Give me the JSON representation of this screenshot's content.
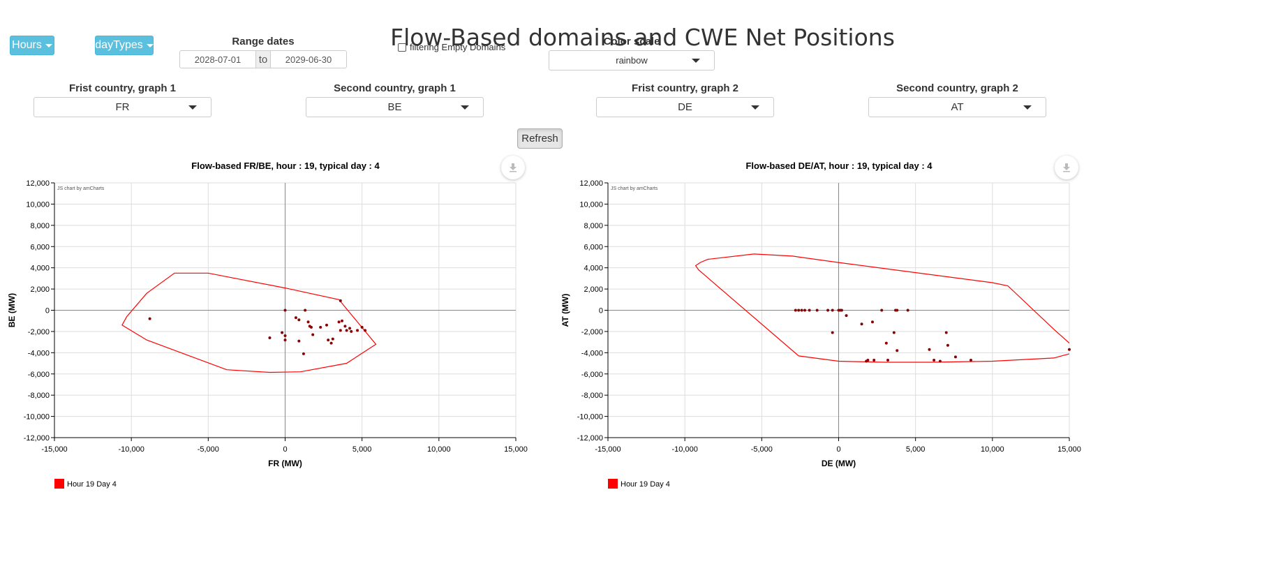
{
  "page": {
    "title": "Flow-Based domains and CWE Net Positions"
  },
  "controls": {
    "hours_label": "Hours",
    "daytypes_label": "dayTypes",
    "range_label": "Range dates",
    "date_from": "2028-07-01",
    "date_sep": "to",
    "date_to": "2029-06-30",
    "filter_label": "filtering Empty Domains",
    "color_scale_label": "Color scale",
    "color_scale_value": "rainbow",
    "selects": [
      {
        "label": "Frist country, graph 1",
        "value": "FR"
      },
      {
        "label": "Second country, graph 1",
        "value": "BE"
      },
      {
        "label": "Frist country, graph 2",
        "value": "DE"
      },
      {
        "label": "Second country, graph 2",
        "value": "AT"
      }
    ],
    "refresh_label": "Refresh"
  },
  "colors": {
    "accent": "#5bc0de",
    "series": "#ff0000",
    "points": "#8b0000"
  },
  "chart_data": [
    {
      "type": "scatter",
      "title": "Flow-based FR/BE, hour : 19, typical day : 4",
      "xlabel": "FR (MW)",
      "ylabel": "BE (MW)",
      "xlim": [
        -15000,
        15000
      ],
      "ylim": [
        -12000,
        12000
      ],
      "x_ticks": [
        "-15,000",
        "-10,000",
        "-5,000",
        "0",
        "5,000",
        "10,000",
        "15,000"
      ],
      "y_ticks": [
        "12,000",
        "10,000",
        "8,000",
        "6,000",
        "4,000",
        "2,000",
        "0",
        "-2,000",
        "-4,000",
        "-6,000",
        "-8,000",
        "-10,000",
        "-12,000"
      ],
      "credit": "JS chart by amCharts",
      "legend": "Hour 19 Day 4",
      "grid": true,
      "domain": [
        [
          -7200,
          3500
        ],
        [
          -5000,
          3500
        ],
        [
          0,
          2100
        ],
        [
          3500,
          1000
        ],
        [
          5900,
          -3200
        ],
        [
          4000,
          -5000
        ],
        [
          1000,
          -5800
        ],
        [
          -1000,
          -5850
        ],
        [
          -3800,
          -5600
        ],
        [
          -9000,
          -2800
        ],
        [
          -10600,
          -1400
        ],
        [
          -10300,
          -600
        ],
        [
          -9000,
          1600
        ],
        [
          -7200,
          3500
        ]
      ],
      "points": [
        [
          -8800,
          -800
        ],
        [
          0,
          0
        ],
        [
          1300,
          0
        ],
        [
          700,
          -700
        ],
        [
          900,
          -900
        ],
        [
          1500,
          -1100
        ],
        [
          1600,
          -1500
        ],
        [
          1700,
          -1600
        ],
        [
          1800,
          -2300
        ],
        [
          2300,
          -1600
        ],
        [
          2700,
          -1400
        ],
        [
          3500,
          -1100
        ],
        [
          3600,
          -1900
        ],
        [
          3700,
          -1000
        ],
        [
          3900,
          -1500
        ],
        [
          4000,
          -1900
        ],
        [
          4200,
          -1700
        ],
        [
          4300,
          -2000
        ],
        [
          4700,
          -1900
        ],
        [
          5000,
          -1600
        ],
        [
          5200,
          -1900
        ],
        [
          3600,
          900
        ],
        [
          2800,
          -2800
        ],
        [
          3000,
          -3100
        ],
        [
          3100,
          -2700
        ],
        [
          -1000,
          -2600
        ],
        [
          -200,
          -2100
        ],
        [
          0,
          -2400
        ],
        [
          0,
          -2800
        ],
        [
          900,
          -2900
        ],
        [
          1200,
          -4100
        ]
      ]
    },
    {
      "type": "scatter",
      "title": "Flow-based DE/AT, hour : 19, typical day : 4",
      "xlabel": "DE (MW)",
      "ylabel": "AT (MW)",
      "xlim": [
        -15000,
        15000
      ],
      "ylim": [
        -12000,
        12000
      ],
      "x_ticks": [
        "-15,000",
        "-10,000",
        "-5,000",
        "0",
        "5,000",
        "10,000",
        "15,000"
      ],
      "y_ticks": [
        "12,000",
        "10,000",
        "8,000",
        "6,000",
        "4,000",
        "2,000",
        "0",
        "-2,000",
        "-4,000",
        "-6,000",
        "-8,000",
        "-10,000",
        "-12,000"
      ],
      "credit": "JS chart by amCharts",
      "legend": "Hour 19 Day 4",
      "grid": true,
      "domain": [
        [
          15000,
          -3100
        ],
        [
          14000,
          -1800
        ],
        [
          11000,
          2300
        ],
        [
          10000,
          2600
        ],
        [
          0,
          4500
        ],
        [
          -3000,
          5100
        ],
        [
          -5500,
          5300
        ],
        [
          -8500,
          4800
        ],
        [
          -9000,
          4500
        ],
        [
          -9300,
          4200
        ],
        [
          -9100,
          3800
        ],
        [
          -8300,
          2800
        ],
        [
          -2600,
          -4300
        ],
        [
          0,
          -4800
        ],
        [
          3000,
          -4900
        ],
        [
          6000,
          -4900
        ],
        [
          10000,
          -4800
        ],
        [
          14000,
          -4500
        ],
        [
          15000,
          -4100
        ]
      ],
      "points": [
        [
          -2800,
          0
        ],
        [
          -2600,
          0
        ],
        [
          -2400,
          0
        ],
        [
          -2200,
          0
        ],
        [
          -1900,
          0
        ],
        [
          -1400,
          0
        ],
        [
          -700,
          0
        ],
        [
          -400,
          0
        ],
        [
          0,
          0
        ],
        [
          100,
          0
        ],
        [
          200,
          0
        ],
        [
          500,
          -500
        ],
        [
          -400,
          -2100
        ],
        [
          1500,
          -1300
        ],
        [
          2200,
          -1100
        ],
        [
          2800,
          0
        ],
        [
          3700,
          0
        ],
        [
          3800,
          0
        ],
        [
          4500,
          0
        ],
        [
          3100,
          -3100
        ],
        [
          3600,
          -2100
        ],
        [
          3800,
          -3800
        ],
        [
          3200,
          -4700
        ],
        [
          2300,
          -4700
        ],
        [
          1800,
          -4800
        ],
        [
          1900,
          -4700
        ],
        [
          5900,
          -3700
        ],
        [
          6200,
          -4700
        ],
        [
          6600,
          -4800
        ],
        [
          7000,
          -2100
        ],
        [
          7100,
          -3300
        ],
        [
          7600,
          -4400
        ],
        [
          8600,
          -4700
        ],
        [
          15000,
          -3700
        ]
      ]
    }
  ]
}
